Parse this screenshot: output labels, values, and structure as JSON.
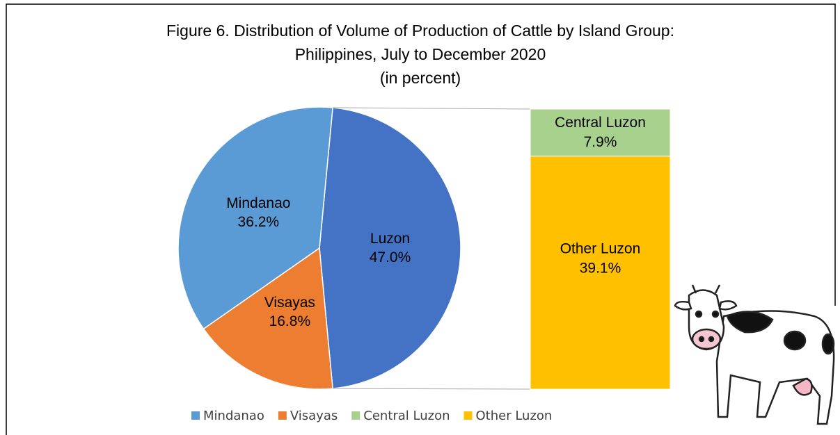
{
  "chart_data": {
    "type": "bar-of-pie",
    "title": [
      "Figure 6.  Distribution of Volume of Production of Cattle by Island Group:",
      "Philippines, July to December 2020",
      "(in percent)"
    ],
    "pie": {
      "categories": [
        "Luzon",
        "Visayas",
        "Mindanao"
      ],
      "values": [
        47.0,
        16.8,
        36.2
      ],
      "value_labels": [
        "47.0%",
        "16.8%",
        "36.2%"
      ],
      "colors": [
        "#4472c4",
        "#ed7d31",
        "#5b9bd5"
      ]
    },
    "bar": {
      "categories": [
        "Central Luzon",
        "Other Luzon"
      ],
      "values": [
        7.9,
        39.1
      ],
      "value_labels": [
        "7.9%",
        "39.1%"
      ],
      "colors": [
        "#a9d18e",
        "#ffc000"
      ]
    }
  }
}
